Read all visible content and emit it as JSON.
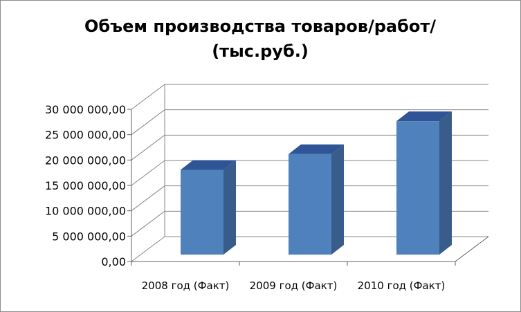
{
  "chart_data": {
    "type": "bar",
    "title_lines": [
      "Объем производства товаров/работ/",
      "(тыс.руб.)"
    ],
    "categories": [
      "2008 год (Факт)",
      "2009 год  (Факт)",
      "2010 год  (Факт)"
    ],
    "series": [
      {
        "values": [
          16700000,
          19800000,
          26300000
        ]
      }
    ],
    "yticks": [
      "0,00",
      "5 000 000,00",
      "10 000 000,00",
      "15 000 000,00",
      "20 000 000,00",
      "25 000 000,00",
      "30 000 000,00"
    ],
    "ylim": [
      0,
      30000000
    ],
    "grid": true,
    "style": "3d-column",
    "colors": {
      "bar_front": "#4f81bd",
      "bar_side": "#385d8a",
      "bar_top": "#2f5597",
      "grid": "#868686",
      "axis": "#5f5f5f"
    }
  }
}
